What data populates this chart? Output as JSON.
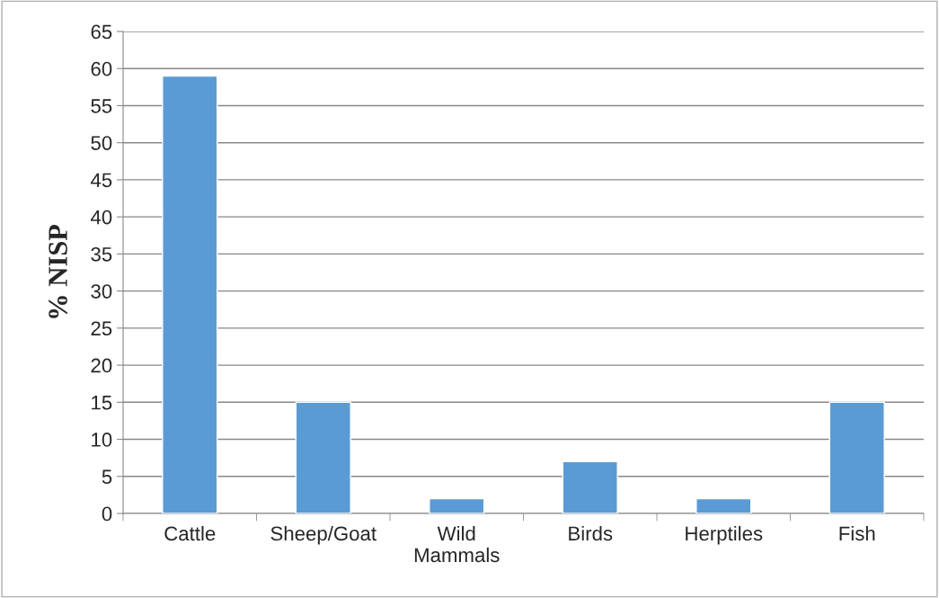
{
  "chart_data": {
    "type": "bar",
    "ylabel": "% NISP",
    "categories": [
      "Cattle",
      "Sheep/Goat",
      "Wild\nMammals",
      "Birds",
      "Herptiles",
      "Fish"
    ],
    "values": [
      59,
      15,
      2,
      7,
      2,
      15
    ],
    "color": "#5b9bd5",
    "ylim": [
      0,
      65
    ],
    "yticks": [
      0,
      5,
      10,
      15,
      20,
      25,
      30,
      35,
      40,
      45,
      50,
      55,
      60,
      65
    ],
    "grid": "y"
  }
}
